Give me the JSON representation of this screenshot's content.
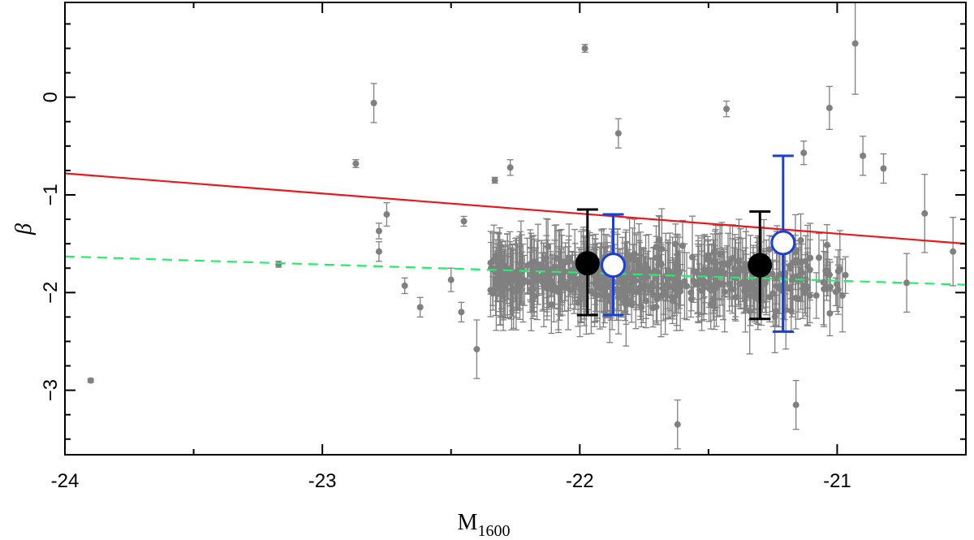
{
  "chart_data": {
    "type": "scatter",
    "title": "",
    "xlabel": "M",
    "xlabel_sub": "1600",
    "ylabel": "β",
    "xlim": [
      -24.0,
      -20.5
    ],
    "ylim": [
      -3.66,
      0.97
    ],
    "xticks": [
      -24,
      -23,
      -22,
      -21
    ],
    "xtick_labels": [
      "-24",
      "-23",
      "-22",
      "-21"
    ],
    "xminor": [
      -23.5,
      -22.5,
      -21.5
    ],
    "yticks": [
      0,
      -1,
      -2,
      -3
    ],
    "ytick_labels": [
      "0",
      "−1",
      "−2",
      "−3"
    ],
    "yminor": [
      0.75,
      0.5,
      0.25,
      -0.25,
      -0.5,
      -0.75,
      -1.25,
      -1.5,
      -1.75,
      -2.25,
      -2.5,
      -2.75,
      -3.25,
      -3.5
    ],
    "grid": false,
    "colors": {
      "scatter": "#808080",
      "binned_black": "#000000",
      "binned_blue": "#1a3fd6",
      "red_line": "#e8191c",
      "green_line": "#22ee66"
    },
    "lines": [
      {
        "style": "solid",
        "color": "#e8191c",
        "x": [
          -24.0,
          -20.5
        ],
        "y": [
          -0.78,
          -1.5
        ]
      },
      {
        "style": "dashed",
        "color": "#22ee66",
        "x": [
          -24.0,
          -20.5
        ],
        "y": [
          -1.63,
          -1.92
        ]
      }
    ],
    "binned_points": [
      {
        "style": "filled",
        "color": "#000000",
        "x": -21.97,
        "y": -1.7,
        "yerr_low": -2.23,
        "yerr_high": -1.15
      },
      {
        "style": "open",
        "color": "#1a3fd6",
        "x": -21.87,
        "y": -1.72,
        "yerr_low": -2.23,
        "yerr_high": -1.2
      },
      {
        "style": "filled",
        "color": "#000000",
        "x": -21.3,
        "y": -1.72,
        "yerr_low": -2.27,
        "yerr_high": -1.17
      },
      {
        "style": "open",
        "color": "#1a3fd6",
        "x": -21.21,
        "y": -1.49,
        "yerr_low": -2.4,
        "yerr_high": -0.6
      }
    ],
    "highlighted_points": [
      {
        "x": -23.9,
        "y": -2.9,
        "err": 0.02
      },
      {
        "x": -23.17,
        "y": -1.71,
        "err": 0.03
      },
      {
        "x": -22.87,
        "y": -0.68,
        "err": 0.04
      },
      {
        "x": -22.8,
        "y": -0.06,
        "err": 0.2
      },
      {
        "x": -22.33,
        "y": -0.85,
        "err": 0.03
      },
      {
        "x": -22.27,
        "y": -0.72,
        "err": 0.08
      },
      {
        "x": -21.98,
        "y": 0.5,
        "err": 0.04
      },
      {
        "x": -20.93,
        "y": 0.55,
        "err": 0.52
      },
      {
        "x": -21.13,
        "y": -0.57,
        "err": 0.12
      },
      {
        "x": -21.03,
        "y": -0.11,
        "err": 0.22
      },
      {
        "x": -21.43,
        "y": -0.12,
        "err": 0.08
      },
      {
        "x": -21.85,
        "y": -0.37,
        "err": 0.15
      },
      {
        "x": -22.4,
        "y": -2.58,
        "err": 0.3
      },
      {
        "x": -20.73,
        "y": -1.9,
        "err": 0.3
      },
      {
        "x": -20.66,
        "y": -1.19,
        "err": 0.4
      },
      {
        "x": -20.55,
        "y": -1.58,
        "err": 0.35
      },
      {
        "x": -20.82,
        "y": -0.73,
        "err": 0.15
      },
      {
        "x": -20.9,
        "y": -0.6,
        "err": 0.2
      },
      {
        "x": -21.16,
        "y": -3.15,
        "err": 0.25
      },
      {
        "x": -21.62,
        "y": -3.35,
        "err": 0.25
      },
      {
        "x": -22.68,
        "y": -1.93,
        "err": 0.08
      },
      {
        "x": -22.75,
        "y": -1.2,
        "err": 0.12
      },
      {
        "x": -22.78,
        "y": -1.37,
        "err": 0.08
      },
      {
        "x": -22.78,
        "y": -1.58,
        "err": 0.1
      },
      {
        "x": -22.62,
        "y": -2.15,
        "err": 0.1
      },
      {
        "x": -22.46,
        "y": -2.2,
        "err": 0.1
      },
      {
        "x": -22.45,
        "y": -1.27,
        "err": 0.05
      },
      {
        "x": -22.5,
        "y": -1.87,
        "err": 0.12
      }
    ],
    "cloud": {
      "n": 520,
      "x_range": [
        -22.35,
        -20.95
      ],
      "y_center": -1.85,
      "y_spread": 0.45,
      "note": "dense grey scatter of individual galaxies with error bars"
    }
  }
}
